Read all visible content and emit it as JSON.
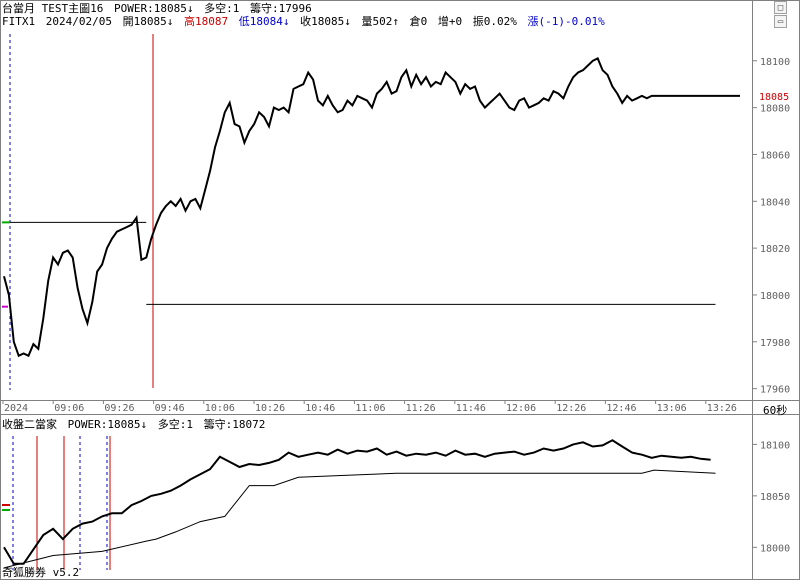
{
  "main_header": {
    "line1": {
      "title": "台當月 TEST主圖16",
      "power": "POWER:18085↓",
      "duo": "多空:1",
      "chou": "籌守:17996"
    },
    "line2": {
      "symbol": "FITX1",
      "date": "2024/02/05",
      "open": "開18085↓",
      "high": "高18087",
      "low": "低18084↓",
      "close": "收18085↓",
      "vol": "量502↑",
      "oi": "倉0",
      "inc": "增+0",
      "amp": "振0.02%",
      "chg": "漲(-1)-0.01%"
    }
  },
  "sub_header": {
    "title": "收盤二當家",
    "power": "POWER:18085↓",
    "duo": "多空:1",
    "chou": "籌守:18072"
  },
  "interval_label": "60秒",
  "watermark": "奇狐勝券 v5.2",
  "colors": {
    "price_line": "#000000",
    "accent_red": "#cc0000",
    "accent_blue": "#0000cc",
    "marker_green": "#00aa00",
    "marker_magenta": "#cc00cc",
    "grid": "#c8c8c8"
  },
  "chart_data": [
    {
      "type": "line",
      "panel": "main",
      "ylim": [
        17956,
        18114
      ],
      "y_ticks": [
        17960,
        17980,
        18000,
        18020,
        18040,
        18060,
        18080,
        18100
      ],
      "x_ticks": [
        "2024",
        "09:06",
        "09:26",
        "09:46",
        "10:06",
        "10:26",
        "10:46",
        "11:06",
        "11:26",
        "11:46",
        "12:06",
        "12:26",
        "12:46",
        "13:06",
        "13:26"
      ],
      "last_value": "18085",
      "series": [
        {
          "role": "price",
          "x": [
            0,
            2,
            4,
            6,
            8,
            10,
            12,
            14,
            16,
            18,
            20,
            22,
            24,
            26,
            28,
            30,
            32,
            34,
            36,
            38,
            40,
            42,
            44,
            46,
            48,
            50,
            52,
            54,
            56,
            58,
            60,
            62,
            64,
            66,
            68,
            70,
            72,
            74,
            76,
            78,
            80,
            82,
            84,
            86,
            88,
            90,
            92,
            94,
            96,
            98,
            100,
            102,
            104,
            106,
            108,
            110,
            112,
            114,
            116,
            118,
            120,
            122,
            124,
            126,
            128,
            130,
            132,
            134,
            136,
            138,
            140,
            142,
            144,
            146,
            148,
            150,
            152,
            154,
            156,
            158,
            160,
            162,
            164,
            166,
            168,
            170,
            172,
            174,
            176,
            178,
            180,
            182,
            184,
            186,
            188,
            190,
            192,
            194,
            196,
            198,
            200,
            202,
            204,
            206,
            208,
            210,
            212,
            214,
            216,
            218,
            220,
            222,
            224,
            226,
            228,
            230,
            232,
            234,
            236,
            238,
            240,
            242,
            244,
            246,
            248,
            250,
            252,
            254,
            256,
            258,
            260,
            262,
            264,
            266,
            268,
            270,
            272,
            274,
            276,
            278,
            280,
            282,
            284,
            286,
            288,
            290,
            292,
            294,
            296,
            298,
            300
          ],
          "y": [
            18008,
            18000,
            17980,
            17974,
            17975,
            17974,
            17979,
            17977,
            17990,
            18006,
            18016,
            18013,
            18018,
            18019,
            18016,
            18003,
            17994,
            17988,
            17997,
            18010,
            18013,
            18020,
            18024,
            18027,
            18028,
            18029,
            18030,
            18033,
            18015,
            18016,
            18024,
            18030,
            18035,
            18038,
            18040,
            18038,
            18041,
            18036,
            18040,
            18041,
            18037,
            18045,
            18053,
            18063,
            18070,
            18078,
            18082,
            18073,
            18072,
            18065,
            18070,
            18073,
            18078,
            18076,
            18072,
            18080,
            18079,
            18080,
            18078,
            18088,
            18089,
            18090,
            18095,
            18092,
            18083,
            18081,
            18085,
            18081,
            18078,
            18079,
            18083,
            18081,
            18085,
            18084,
            18083,
            18080,
            18086,
            18088,
            18091,
            18086,
            18087,
            18093,
            18096,
            18089,
            18094,
            18090,
            18093,
            18089,
            18091,
            18090,
            18095,
            18093,
            18091,
            18086,
            18090,
            18088,
            18089,
            18083,
            18080,
            18082,
            18084,
            18086,
            18083,
            18080,
            18079,
            18083,
            18084,
            18080,
            18081,
            18082,
            18084,
            18083,
            18087,
            18086,
            18084,
            18089,
            18093,
            18095,
            18096,
            18098,
            18100,
            18101,
            18096,
            18094,
            18089,
            18086,
            18082,
            18085,
            18083,
            18084,
            18085,
            18084,
            18085,
            18085,
            18085,
            18085,
            18085,
            18085,
            18085,
            18085,
            18085,
            18085,
            18085,
            18085,
            18085,
            18085,
            18085,
            18085,
            18085,
            18085,
            18085
          ],
          "name": ""
        },
        {
          "role": "level",
          "name": "",
          "segments": [
            {
              "x": [
                0,
                58
              ],
              "y": [
                18031,
                18031
              ]
            },
            {
              "x": [
                58,
                290
              ],
              "y": [
                17996,
                17996
              ]
            }
          ]
        }
      ]
    },
    {
      "type": "line",
      "panel": "sub",
      "ylim": [
        17976,
        18114
      ],
      "y_ticks": [
        18000,
        18050,
        18100
      ],
      "series": [
        {
          "role": "price",
          "name": "",
          "x": [
            0,
            4,
            8,
            12,
            16,
            20,
            24,
            28,
            32,
            36,
            40,
            44,
            48,
            52,
            56,
            60,
            64,
            68,
            72,
            76,
            80,
            84,
            88,
            92,
            96,
            100,
            104,
            108,
            112,
            116,
            120,
            124,
            128,
            132,
            136,
            140,
            144,
            148,
            152,
            156,
            160,
            164,
            168,
            172,
            176,
            180,
            184,
            188,
            192,
            196,
            200,
            204,
            208,
            212,
            216,
            220,
            224,
            228,
            232,
            236,
            240,
            244,
            248,
            252,
            256,
            260,
            264,
            268,
            272,
            276,
            280,
            284,
            288
          ],
          "y": [
            18000,
            17984,
            17984,
            17998,
            18012,
            18018,
            18008,
            18018,
            18023,
            18025,
            18030,
            18033,
            18033,
            18041,
            18045,
            18050,
            18052,
            18055,
            18060,
            18066,
            18071,
            18076,
            18088,
            18083,
            18078,
            18081,
            18080,
            18082,
            18085,
            18092,
            18088,
            18090,
            18092,
            18090,
            18095,
            18091,
            18094,
            18093,
            18096,
            18090,
            18093,
            18089,
            18091,
            18090,
            18092,
            18089,
            18094,
            18090,
            18091,
            18088,
            18091,
            18092,
            18093,
            18090,
            18092,
            18096,
            18094,
            18096,
            18100,
            18102,
            18098,
            18099,
            18104,
            18098,
            18092,
            18090,
            18087,
            18089,
            18088,
            18087,
            18088,
            18086,
            18085
          ]
        },
        {
          "role": "support",
          "name": "",
          "x": [
            0,
            20,
            40,
            58,
            62,
            70,
            80,
            90,
            100,
            110,
            120,
            140,
            160,
            180,
            200,
            220,
            250,
            260,
            265,
            290
          ],
          "y": [
            17980,
            17992,
            17996,
            18006,
            18008,
            18015,
            18025,
            18030,
            18060,
            18060,
            18068,
            18070,
            18072,
            18072,
            18072,
            18072,
            18072,
            18072,
            18075,
            18072
          ]
        }
      ]
    }
  ]
}
